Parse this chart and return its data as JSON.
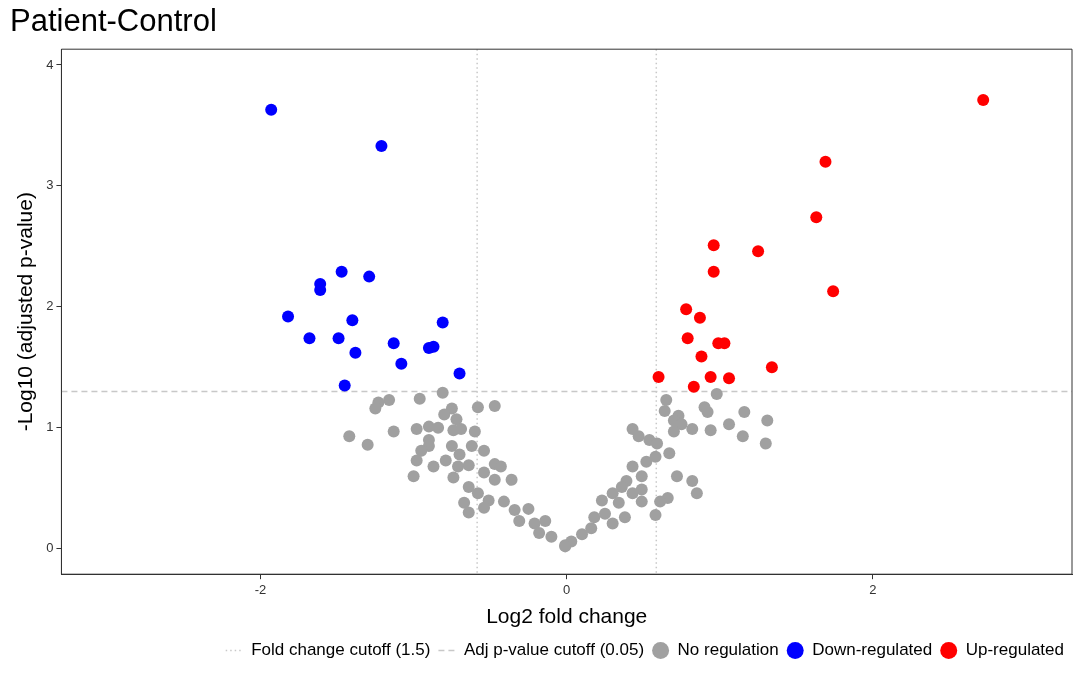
{
  "chart_data": {
    "type": "scatter",
    "title": "Patient-Control",
    "xlabel": "Log2 fold change",
    "ylabel": "-Log10 (adjusted p-value)",
    "xlim": [
      -3.3,
      3.3
    ],
    "ylim": [
      -0.21,
      4.13
    ],
    "xticks": [
      -2,
      0,
      2
    ],
    "yticks": [
      0,
      1,
      2,
      3,
      4
    ],
    "grid": false,
    "legend": "bottom",
    "marker": "circle",
    "ref_lines": [
      {
        "axis": "x",
        "value": -0.585,
        "label": "Fold change cutoff (1.5)",
        "color": "#c8c8c8",
        "line_style": "dotted"
      },
      {
        "axis": "x",
        "value": 0.585,
        "label": null,
        "color": "#c8c8c8",
        "line_style": "dotted"
      },
      {
        "axis": "y",
        "value": 1.301,
        "label": "Adj p-value cutoff (0.05)",
        "color": "#c8c8c8",
        "line_style": "dashed"
      }
    ],
    "series": [
      {
        "name": "No regulation",
        "color": "#a0a0a0",
        "x": [
          -0.81,
          -1.16,
          -1.23,
          -1.25,
          -0.96,
          -0.58,
          -0.47,
          -0.75,
          -0.8,
          -0.72,
          -1.42,
          -1.3,
          -1.13,
          -0.98,
          -0.9,
          -0.84,
          -0.74,
          -0.69,
          -0.6,
          -0.9,
          -0.9,
          -0.95,
          -0.98,
          -1.0,
          -0.87,
          -0.75,
          -0.7,
          -0.62,
          -0.54,
          -0.79,
          -0.74,
          -0.71,
          -0.64,
          -0.54,
          -0.47,
          -0.43,
          -0.47,
          -0.36,
          -0.64,
          -0.58,
          -0.51,
          -0.67,
          -0.64,
          -0.54,
          -0.41,
          -0.34,
          -0.25,
          -0.31,
          -0.21,
          -0.14,
          -0.18,
          -0.1,
          -0.01,
          0.98,
          0.65,
          0.64,
          0.9,
          0.92,
          1.16,
          1.31,
          0.73,
          0.7,
          0.75,
          0.82,
          0.7,
          1.06,
          0.94,
          1.15,
          1.3,
          0.43,
          0.47,
          0.54,
          0.59,
          0.67,
          0.58,
          0.52,
          0.43,
          0.49,
          0.72,
          0.82,
          0.85,
          0.39,
          0.49,
          0.36,
          0.3,
          0.43,
          0.49,
          0.66,
          0.61,
          0.58,
          0.23,
          0.34,
          0.25,
          0.38,
          0.18,
          0.16,
          0.3,
          0.1,
          0.03,
          -0.01
        ],
        "values": [
          1.29,
          1.23,
          1.21,
          1.16,
          1.24,
          1.17,
          1.18,
          1.16,
          1.11,
          1.07,
          0.93,
          0.86,
          0.97,
          0.99,
          1.01,
          1.0,
          0.98,
          0.99,
          0.97,
          0.9,
          0.85,
          0.81,
          0.73,
          0.6,
          0.68,
          0.85,
          0.78,
          0.85,
          0.81,
          0.73,
          0.59,
          0.68,
          0.69,
          0.63,
          0.7,
          0.68,
          0.57,
          0.57,
          0.51,
          0.46,
          0.4,
          0.38,
          0.3,
          0.34,
          0.39,
          0.32,
          0.33,
          0.23,
          0.21,
          0.23,
          0.13,
          0.1,
          0.03,
          1.28,
          1.23,
          1.14,
          1.17,
          1.13,
          1.13,
          1.06,
          1.1,
          1.06,
          1.03,
          0.99,
          0.97,
          1.03,
          0.98,
          0.93,
          0.87,
          0.99,
          0.93,
          0.9,
          0.87,
          0.79,
          0.76,
          0.72,
          0.68,
          0.6,
          0.6,
          0.56,
          0.46,
          0.56,
          0.49,
          0.51,
          0.46,
          0.46,
          0.39,
          0.42,
          0.39,
          0.28,
          0.4,
          0.38,
          0.29,
          0.26,
          0.26,
          0.17,
          0.21,
          0.12,
          0.06,
          0.02
        ]
      },
      {
        "name": "Down-regulated",
        "color": "#0000ff",
        "x": [
          -1.93,
          -1.21,
          -1.47,
          -1.29,
          -1.61,
          -1.61,
          -1.82,
          -1.4,
          -0.81,
          -1.68,
          -1.49,
          -1.13,
          -0.9,
          -0.87,
          -1.38,
          -1.08,
          -0.7,
          -1.45
        ],
        "values": [
          3.63,
          3.33,
          2.29,
          2.25,
          2.19,
          2.14,
          1.92,
          1.89,
          1.87,
          1.74,
          1.74,
          1.7,
          1.66,
          1.67,
          1.62,
          1.53,
          1.45,
          1.35
        ]
      },
      {
        "name": "Up-regulated",
        "color": "#ff0000",
        "x": [
          2.72,
          1.69,
          1.63,
          0.96,
          1.25,
          0.96,
          1.74,
          0.78,
          0.87,
          0.79,
          0.99,
          1.03,
          0.88,
          1.34,
          0.6,
          0.94,
          1.06,
          0.83
        ],
        "values": [
          3.71,
          3.2,
          2.74,
          2.51,
          2.46,
          2.29,
          2.13,
          1.98,
          1.91,
          1.74,
          1.7,
          1.7,
          1.59,
          1.5,
          1.42,
          1.42,
          1.41,
          1.34
        ]
      }
    ]
  }
}
